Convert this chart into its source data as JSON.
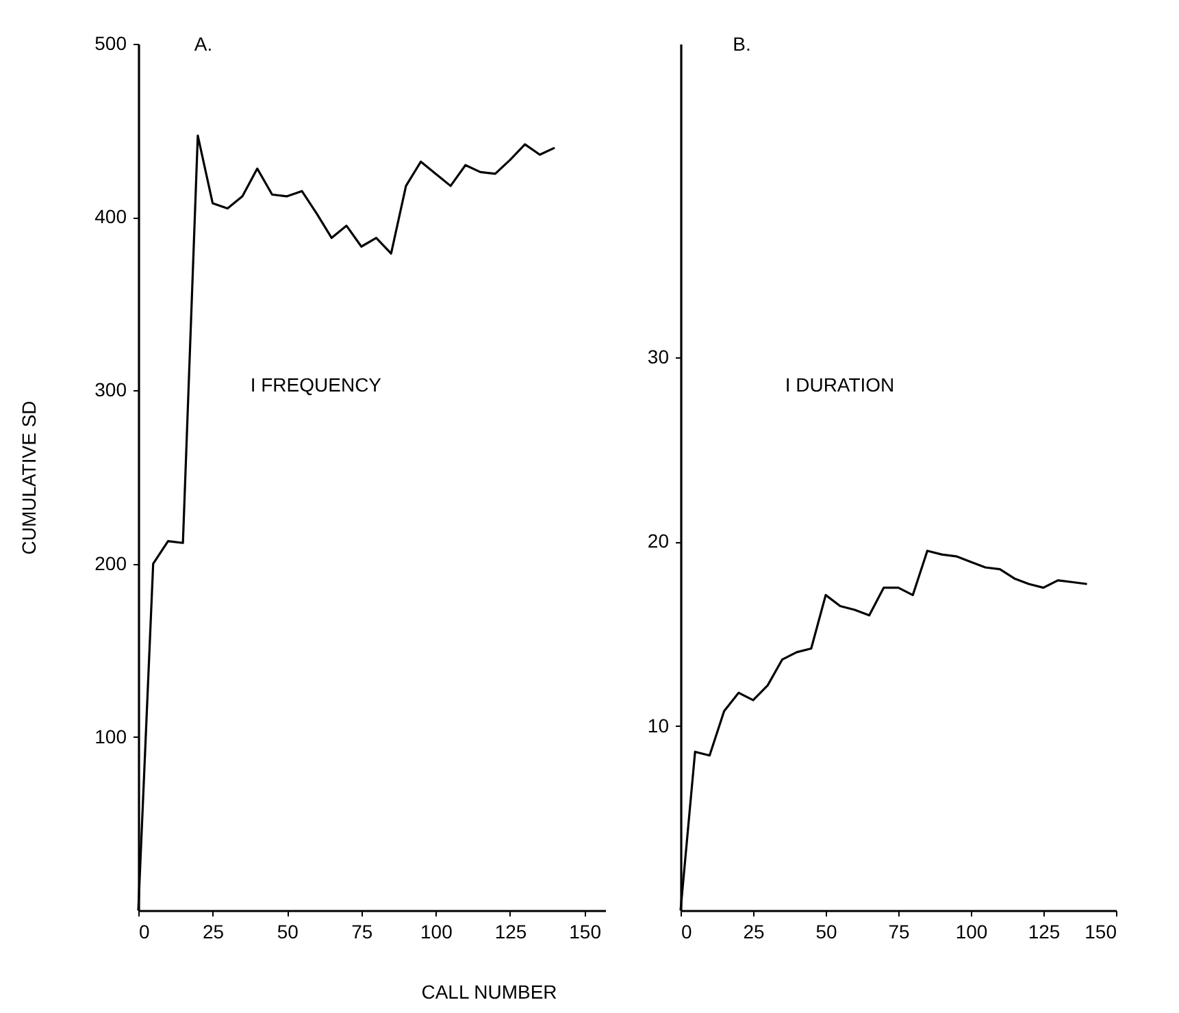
{
  "chart_data": [
    {
      "type": "line",
      "title": "A.",
      "xlabel": "CALL NUMBER",
      "ylabel": "CUMULATIVE SD",
      "annotations": [
        "I FREQUENCY"
      ],
      "x": [
        0,
        5,
        10,
        15,
        20,
        25,
        30,
        35,
        40,
        45,
        50,
        55,
        60,
        65,
        70,
        75,
        80,
        85,
        90,
        95,
        100,
        105,
        110,
        115,
        120,
        125,
        130,
        135,
        140
      ],
      "series": [
        {
          "color": "#000000",
          "values": [
            0,
            200,
            213,
            212,
            447,
            408,
            405,
            412,
            428,
            413,
            412,
            415,
            402,
            388,
            395,
            383,
            388,
            379,
            418,
            432,
            425,
            418,
            430,
            426,
            425,
            433,
            442,
            436,
            440
          ]
        }
      ],
      "xlim": [
        0,
        157
      ],
      "xticks": [
        0,
        25,
        50,
        75,
        100,
        125,
        150
      ],
      "ylim": [
        0,
        500
      ],
      "yticks": [
        100,
        200,
        300,
        400,
        500
      ],
      "grid": false,
      "line_style": "solid"
    },
    {
      "type": "line",
      "title": "B.",
      "annotations": [
        "I DURATION"
      ],
      "x": [
        0,
        5,
        10,
        15,
        20,
        25,
        30,
        35,
        40,
        45,
        50,
        55,
        60,
        65,
        70,
        75,
        80,
        85,
        90,
        95,
        100,
        105,
        110,
        115,
        120,
        125,
        130,
        135,
        140
      ],
      "series": [
        {
          "color": "#000000",
          "values": [
            0,
            8.6,
            8.4,
            10.8,
            11.8,
            11.4,
            12.2,
            13.6,
            14.0,
            14.2,
            17.1,
            16.5,
            16.3,
            16.0,
            17.5,
            17.5,
            17.1,
            19.5,
            19.3,
            19.2,
            18.9,
            18.6,
            18.5,
            18.0,
            17.7,
            17.5,
            17.9,
            17.8,
            17.7
          ]
        }
      ],
      "xlim": [
        0,
        150
      ],
      "xticks": [
        0,
        25,
        50,
        75,
        100,
        125,
        150
      ],
      "ylim": [
        0,
        47
      ],
      "yticks": [
        10,
        20,
        30
      ],
      "grid": false,
      "line_style": "solid"
    }
  ]
}
